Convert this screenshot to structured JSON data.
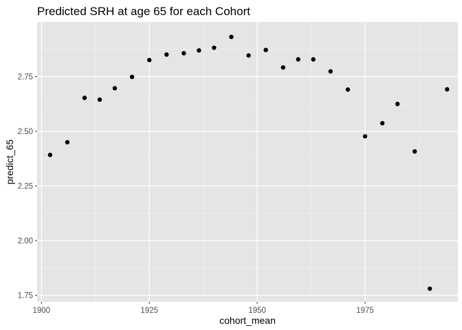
{
  "chart_data": {
    "type": "scatter",
    "title": "Predicted SRH at age 65 for each Cohort",
    "xlabel": "cohort_mean",
    "ylabel": "predict_65",
    "xlim": [
      1899,
      1996.5
    ],
    "ylim": [
      1.72,
      3.0
    ],
    "x_ticks": [
      {
        "value": 1900,
        "label": "1900"
      },
      {
        "value": 1925,
        "label": "1925"
      },
      {
        "value": 1950,
        "label": "1950"
      },
      {
        "value": 1975,
        "label": "1975"
      }
    ],
    "y_ticks": [
      {
        "value": 1.75,
        "label": "1.75"
      },
      {
        "value": 2.0,
        "label": "2.00"
      },
      {
        "value": 2.25,
        "label": "2.25"
      },
      {
        "value": 2.5,
        "label": "2.50"
      },
      {
        "value": 2.75,
        "label": "2.75"
      }
    ],
    "grid": true,
    "legend": "none",
    "colors": {
      "panel": "#e5e5e5",
      "grid_major": "#ffffff",
      "grid_minor": "#f2f2f2",
      "point": "#000000"
    },
    "points": [
      {
        "x": 1902,
        "y": 2.392
      },
      {
        "x": 1906,
        "y": 2.45
      },
      {
        "x": 1910,
        "y": 2.653
      },
      {
        "x": 1913.5,
        "y": 2.645
      },
      {
        "x": 1917,
        "y": 2.697
      },
      {
        "x": 1921,
        "y": 2.749
      },
      {
        "x": 1925,
        "y": 2.826
      },
      {
        "x": 1929,
        "y": 2.851
      },
      {
        "x": 1933,
        "y": 2.857
      },
      {
        "x": 1936.5,
        "y": 2.87
      },
      {
        "x": 1940,
        "y": 2.882
      },
      {
        "x": 1944,
        "y": 2.932
      },
      {
        "x": 1948,
        "y": 2.847
      },
      {
        "x": 1952,
        "y": 2.872
      },
      {
        "x": 1956,
        "y": 2.792
      },
      {
        "x": 1959.5,
        "y": 2.829
      },
      {
        "x": 1963,
        "y": 2.829
      },
      {
        "x": 1967,
        "y": 2.774
      },
      {
        "x": 1971,
        "y": 2.691
      },
      {
        "x": 1975,
        "y": 2.477
      },
      {
        "x": 1979,
        "y": 2.537
      },
      {
        "x": 1982.5,
        "y": 2.625
      },
      {
        "x": 1986.5,
        "y": 2.408
      },
      {
        "x": 1990,
        "y": 1.78
      },
      {
        "x": 1994,
        "y": 2.692
      }
    ]
  }
}
